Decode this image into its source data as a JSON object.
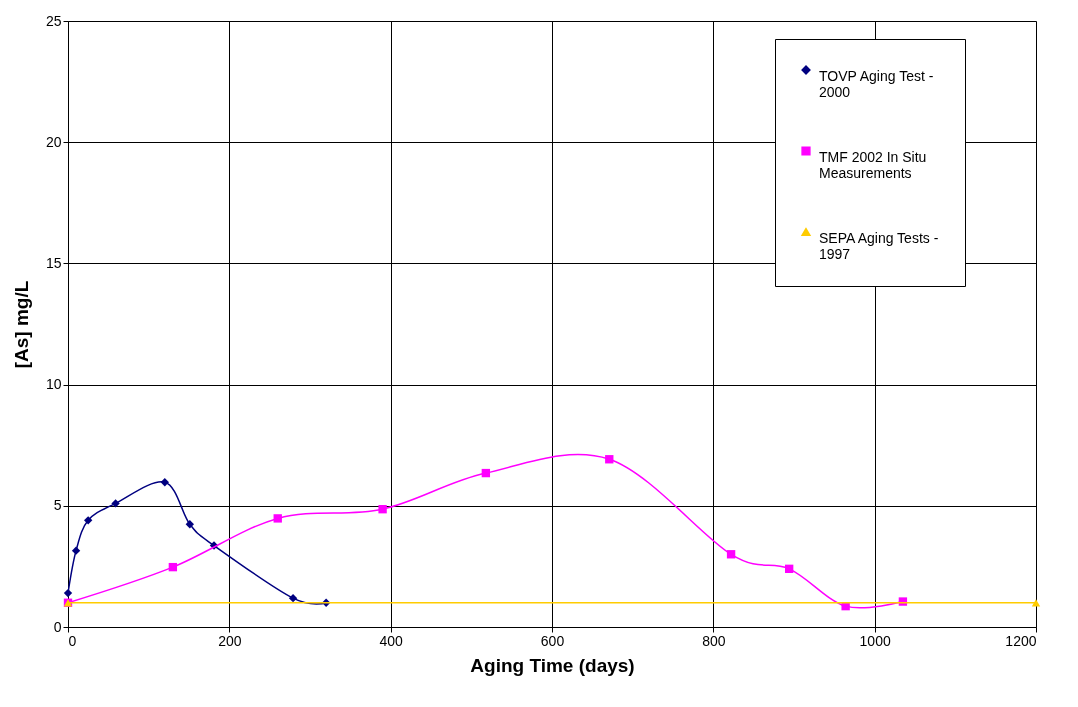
{
  "chart_data": {
    "type": "line",
    "xlabel": "Aging Time (days)",
    "ylabel": "[As] mg/L",
    "xlim": [
      0,
      1200
    ],
    "xticks": [
      0,
      200,
      400,
      600,
      800,
      1000,
      1200
    ],
    "ylim": [
      0,
      25
    ],
    "yticks": [
      0,
      5,
      10,
      15,
      20,
      25
    ],
    "grid": true,
    "legend": "top right",
    "series": [
      {
        "name": "TOVP Aging Test - 2000",
        "color": "#000080",
        "marker": "diamond",
        "x": [
          0,
          10,
          25,
          59,
          120,
          151,
          181,
          279,
          320
        ],
        "values": [
          1.4,
          3.15,
          4.4,
          5.1,
          5.97,
          4.24,
          3.36,
          1.19,
          1.0
        ]
      },
      {
        "name": "TMF 2002 In Situ Measurements",
        "color": "#ff00ff",
        "marker": "square",
        "x": [
          0,
          130,
          260,
          390,
          518,
          671,
          822,
          894,
          964,
          1035
        ],
        "values": [
          1.0,
          2.47,
          4.48,
          4.86,
          6.35,
          6.92,
          3.0,
          2.4,
          0.86,
          1.05
        ]
      },
      {
        "name": "SEPA Aging Tests - 1997",
        "color": "#ffcc00",
        "marker": "triangle",
        "x": [
          0,
          1200
        ],
        "values": [
          1.0,
          1.0
        ]
      }
    ]
  }
}
